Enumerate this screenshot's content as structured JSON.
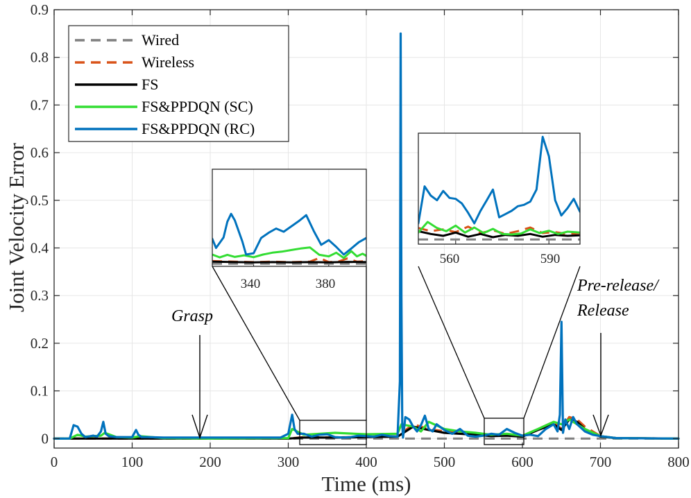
{
  "chart_data": {
    "type": "line",
    "title": "",
    "xlabel": "Time (ms)",
    "ylabel": "Joint Velocity Error",
    "xlim": [
      0,
      800
    ],
    "ylim": [
      -0.02,
      0.9
    ],
    "xticks": [
      0,
      100,
      200,
      300,
      400,
      500,
      600,
      700,
      800
    ],
    "yticks": [
      0,
      0.1,
      0.2,
      0.3,
      0.4,
      0.5,
      0.6,
      0.7,
      0.8,
      0.9
    ],
    "xtick_labels": [
      "0",
      "100",
      "200",
      "300",
      "400",
      "500",
      "600",
      "700",
      "800"
    ],
    "ytick_labels": [
      "0",
      "0.1",
      "0.2",
      "0.3",
      "0.4",
      "0.5",
      "0.6",
      "0.7",
      "0.8",
      "0.9"
    ],
    "grid": true,
    "legend_position": "top-left",
    "series": [
      {
        "name": "Wired",
        "color": "#808080",
        "dash": true,
        "x": [
          0,
          800
        ],
        "y": [
          0,
          0
        ]
      },
      {
        "name": "Wireless",
        "color": "#D95319",
        "dash": true,
        "x": [
          0,
          300,
          320,
          360,
          400,
          440,
          460,
          480,
          500,
          540,
          560,
          580,
          600,
          620,
          640,
          650,
          660,
          670,
          680,
          700,
          720,
          800
        ],
        "y": [
          0,
          0,
          0.003,
          0.002,
          0.004,
          0.005,
          0.03,
          0.02,
          0.015,
          0.01,
          0.006,
          0.008,
          0.004,
          0.02,
          0.035,
          0.02,
          0.045,
          0.04,
          0.025,
          0.005,
          0.001,
          0
        ]
      },
      {
        "name": "FS",
        "color": "#000000",
        "dash": false,
        "x": [
          0,
          300,
          320,
          360,
          400,
          440,
          460,
          480,
          500,
          540,
          560,
          580,
          600,
          620,
          640,
          650,
          660,
          670,
          680,
          700,
          720,
          800
        ],
        "y": [
          0,
          0,
          0.002,
          0.002,
          0.003,
          0.004,
          0.025,
          0.018,
          0.012,
          0.008,
          0.005,
          0.006,
          0.004,
          0.018,
          0.03,
          0.018,
          0.04,
          0.035,
          0.02,
          0.004,
          0.001,
          0
        ]
      },
      {
        "name": "FS&PPDQN (SC)",
        "color": "#33DD33",
        "dash": false,
        "x": [
          0,
          20,
          30,
          40,
          60,
          65,
          80,
          100,
          110,
          140,
          200,
          300,
          305,
          320,
          360,
          400,
          440,
          445,
          460,
          470,
          480,
          500,
          520,
          540,
          560,
          580,
          600,
          620,
          640,
          650,
          660,
          670,
          680,
          700,
          720,
          800
        ],
        "y": [
          0,
          0,
          0.008,
          0.004,
          0.006,
          0.012,
          0.003,
          0.002,
          0.005,
          0.001,
          0,
          0.001,
          0.02,
          0.008,
          0.012,
          0.009,
          0.01,
          0.03,
          0.025,
          0.015,
          0.035,
          0.02,
          0.015,
          0.012,
          0.008,
          0.01,
          0.006,
          0.02,
          0.035,
          0.03,
          0.04,
          0.03,
          0.02,
          0.005,
          0.001,
          0
        ]
      },
      {
        "name": "FS&PPDQN (RC)",
        "color": "#0072BD",
        "dash": false,
        "x": [
          0,
          20,
          25,
          30,
          35,
          40,
          50,
          55,
          60,
          63,
          66,
          70,
          80,
          100,
          105,
          108,
          112,
          120,
          140,
          200,
          290,
          300,
          305,
          308,
          312,
          320,
          330,
          340,
          350,
          360,
          370,
          380,
          390,
          400,
          410,
          420,
          430,
          440,
          443,
          444,
          445,
          446,
          447,
          450,
          455,
          460,
          465,
          470,
          475,
          480,
          485,
          490,
          500,
          510,
          520,
          530,
          540,
          550,
          560,
          570,
          580,
          590,
          600,
          610,
          620,
          630,
          640,
          645,
          648,
          650,
          652,
          655,
          660,
          665,
          670,
          680,
          690,
          700,
          720,
          800
        ],
        "y": [
          0,
          0,
          0.028,
          0.025,
          0.01,
          0.003,
          0.006,
          0.004,
          0.015,
          0.035,
          0.01,
          0.005,
          0.003,
          0.003,
          0.018,
          0.008,
          0.003,
          0.003,
          0.002,
          0.002,
          0.002,
          0.01,
          0.05,
          0.02,
          0.01,
          0.01,
          0.004,
          0.008,
          0.009,
          0.003,
          0.002,
          0.003,
          0.006,
          0.005,
          0.004,
          0.008,
          0.005,
          0.004,
          0.12,
          0.85,
          0.3,
          0.03,
          0.002,
          0.045,
          0.04,
          0.025,
          0.015,
          0.028,
          0.048,
          0.02,
          0.015,
          0.03,
          0.018,
          0.01,
          0.02,
          0.006,
          0.004,
          0.006,
          0.01,
          0.008,
          0.02,
          0.012,
          0.006,
          0.008,
          0.005,
          0.02,
          0.03,
          0.015,
          0.05,
          0.245,
          0.012,
          0.04,
          0.02,
          0.045,
          0.03,
          0.015,
          0.008,
          0.005,
          0.001,
          0
        ]
      }
    ],
    "annotations": [
      {
        "text": "Grasp",
        "x": 190
      },
      {
        "text": "Pre-release/",
        "x": 700
      },
      {
        "text": "Release",
        "x": 700
      }
    ],
    "insets": [
      {
        "name": "inset-1",
        "xrange": [
          318,
          400
        ],
        "yrange": [
          -0.001,
          0.036
        ],
        "xticks": [
          340,
          380
        ],
        "xtick_labels": [
          "340",
          "380"
        ],
        "series": [
          {
            "name": "Wired",
            "color": "#808080",
            "dash": true,
            "x": [
              318,
              400
            ],
            "y": [
              0,
              0
            ]
          },
          {
            "name": "Wireless",
            "color": "#D95319",
            "dash": true,
            "x": [
              318,
              330,
              340,
              350,
              360,
              370,
              375,
              380,
              385,
              390,
              395,
              400
            ],
            "y": [
              0.001,
              0.0008,
              0.0006,
              0.0008,
              0.0006,
              0.0008,
              0.0022,
              0.0006,
              0.0008,
              0.002,
              0.0008,
              0.001
            ]
          },
          {
            "name": "FS",
            "color": "#000000",
            "dash": false,
            "x": [
              318,
              330,
              340,
              350,
              360,
              370,
              380,
              390,
              400
            ],
            "y": [
              0.0008,
              0.0006,
              0.0005,
              0.0006,
              0.0005,
              0.0006,
              0.0005,
              0.0007,
              0.0006
            ]
          },
          {
            "name": "FS&PPDQN (SC)",
            "color": "#33DD33",
            "dash": false,
            "x": [
              318,
              322,
              326,
              330,
              335,
              340,
              345,
              350,
              355,
              360,
              365,
              370,
              375,
              380,
              384,
              388,
              392,
              395,
              398,
              400
            ],
            "y": [
              0.0035,
              0.0024,
              0.0034,
              0.0026,
              0.0032,
              0.0025,
              0.0035,
              0.0042,
              0.0046,
              0.0052,
              0.0058,
              0.0062,
              0.0034,
              0.0028,
              0.0042,
              0.0022,
              0.0048,
              0.0028,
              0.0038,
              0.003
            ]
          },
          {
            "name": "FS&PPDQN (RC)",
            "color": "#0072BD",
            "dash": false,
            "x": [
              318,
              320,
              324,
              326,
              328,
              330,
              334,
              336,
              340,
              344,
              348,
              352,
              356,
              360,
              364,
              368,
              372,
              376,
              380,
              384,
              388,
              392,
              396,
              400
            ],
            "y": [
              0.0095,
              0.006,
              0.01,
              0.016,
              0.019,
              0.0165,
              0.0085,
              0.0035,
              0.004,
              0.0098,
              0.0118,
              0.0134,
              0.0122,
              0.0142,
              0.0162,
              0.0185,
              0.0125,
              0.0072,
              0.009,
              0.0064,
              0.0035,
              0.0058,
              0.0082,
              0.0098
            ]
          }
        ]
      },
      {
        "name": "inset-2",
        "xrange": [
          548,
          600
        ],
        "yrange": [
          -0.001,
          0.023
        ],
        "xticks": [
          560,
          590
        ],
        "xtick_labels": [
          "560",
          "590"
        ],
        "series": [
          {
            "name": "Wired",
            "color": "#808080",
            "dash": true,
            "x": [
              548,
              600
            ],
            "y": [
              0,
              0
            ]
          },
          {
            "name": "Wireless",
            "color": "#D95319",
            "dash": true,
            "x": [
              548,
              552,
              556,
              560,
              564,
              568,
              572,
              576,
              580,
              584,
              588,
              592,
              596,
              600
            ],
            "y": [
              0.0025,
              0.0018,
              0.0022,
              0.0016,
              0.0028,
              0.0014,
              0.002,
              0.0012,
              0.0018,
              0.0026,
              0.0014,
              0.0016,
              0.0012,
              0.0014
            ]
          },
          {
            "name": "FS",
            "color": "#000000",
            "dash": false,
            "x": [
              548,
              552,
              556,
              560,
              564,
              568,
              572,
              576,
              580,
              584,
              588,
              592,
              596,
              600
            ],
            "y": [
              0.0018,
              0.0012,
              0.0008,
              0.0015,
              0.0006,
              0.0012,
              0.0005,
              0.001,
              0.0008,
              0.0012,
              0.0006,
              0.001,
              0.0008,
              0.0009
            ]
          },
          {
            "name": "FS&PPDQN (SC)",
            "color": "#33DD33",
            "dash": false,
            "x": [
              548,
              551,
              554,
              557,
              560,
              563,
              566,
              569,
              572,
              575,
              578,
              581,
              584,
              587,
              590,
              593,
              596,
              600
            ],
            "y": [
              0.0015,
              0.0038,
              0.0025,
              0.0018,
              0.003,
              0.0015,
              0.0026,
              0.0014,
              0.0023,
              0.0012,
              0.0011,
              0.0013,
              0.0022,
              0.0014,
              0.0019,
              0.0012,
              0.0017,
              0.0015
            ]
          },
          {
            "name": "FS&PPDQN (RC)",
            "color": "#0072BD",
            "dash": false,
            "x": [
              548,
              550,
              552,
              554,
              556,
              558,
              560,
              562,
              564,
              566,
              568,
              570,
              572,
              574,
              576,
              578,
              580,
              582,
              584,
              586,
              588,
              590,
              592,
              594,
              596,
              598,
              600
            ],
            "y": [
              0.0035,
              0.0115,
              0.0095,
              0.0085,
              0.0105,
              0.009,
              0.0088,
              0.0078,
              0.0058,
              0.0035,
              0.0062,
              0.0085,
              0.0108,
              0.0048,
              0.0055,
              0.0062,
              0.0072,
              0.0075,
              0.0082,
              0.0108,
              0.0222,
              0.018,
              0.0085,
              0.0052,
              0.0068,
              0.0088,
              0.006
            ]
          }
        ]
      }
    ]
  }
}
